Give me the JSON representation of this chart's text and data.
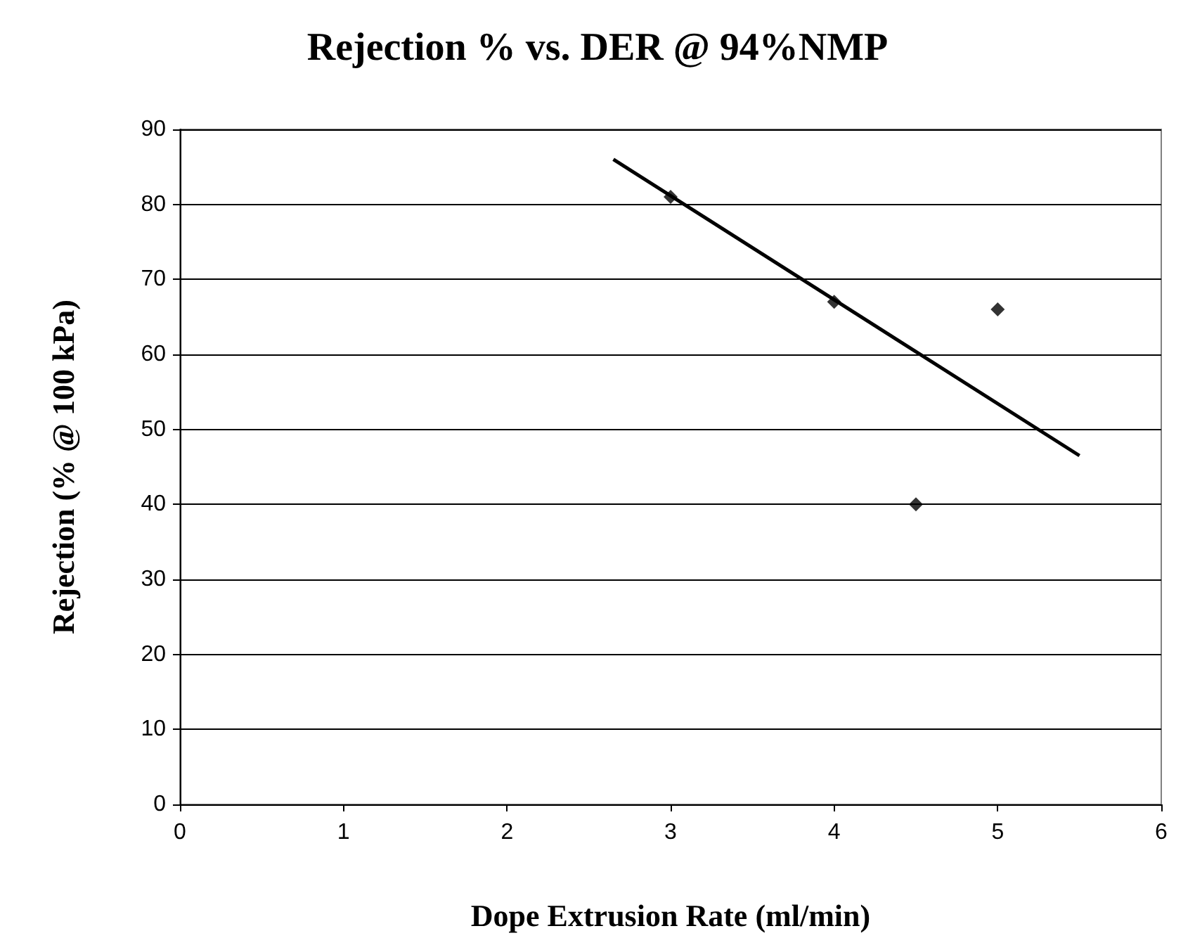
{
  "chart_data": {
    "type": "scatter",
    "title": "Rejection % vs. DER @ 94%NMP",
    "xlabel": "Dope Extrusion Rate (ml/min)",
    "ylabel": "Rejection (% @ 100 kPa)",
    "series": [
      {
        "color": "#000000",
        "marker": "diamond",
        "x": [
          3,
          4,
          4.5,
          5
        ],
        "values": [
          81,
          67,
          40,
          66
        ]
      },
      {
        "type": "line",
        "color": "#000000",
        "marker": "none",
        "x": [
          2.65,
          5.5
        ],
        "values": [
          86,
          46.5
        ]
      }
    ],
    "xlim": [
      0,
      6
    ],
    "xticks": [
      0,
      1,
      2,
      3,
      4,
      5,
      6
    ],
    "ylim": [
      0,
      90
    ],
    "yticks": [
      0,
      10,
      20,
      30,
      40,
      50,
      60,
      70,
      80,
      90
    ],
    "grid": "y"
  }
}
